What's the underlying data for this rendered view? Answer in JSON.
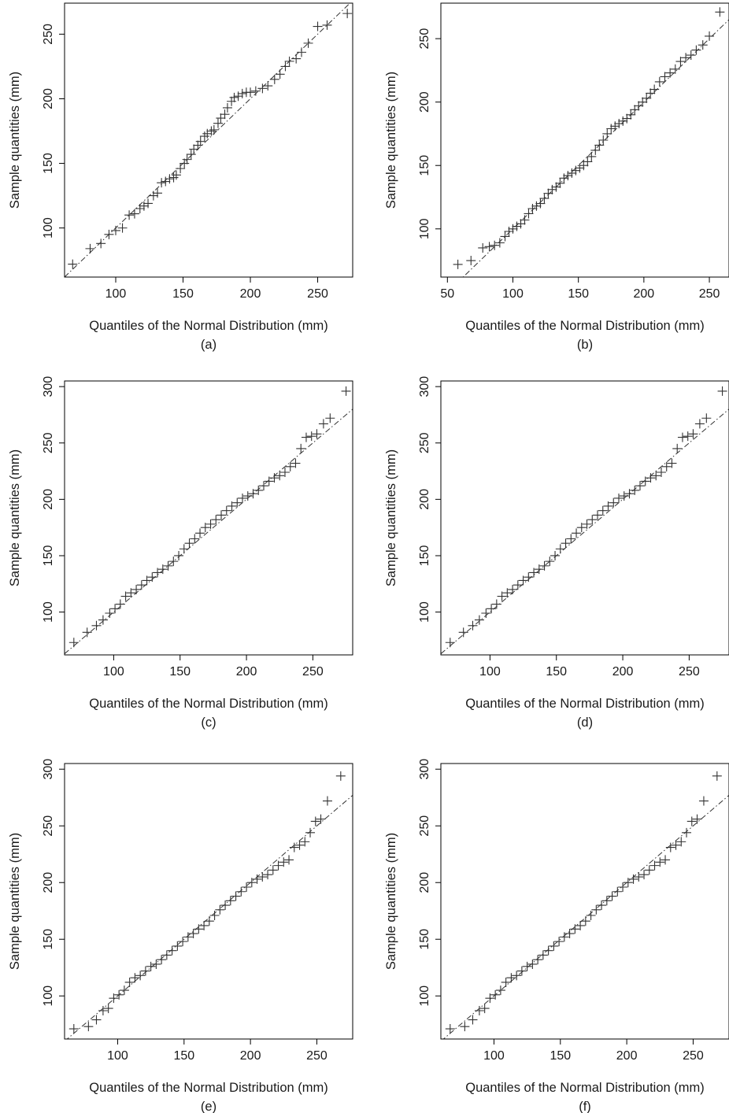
{
  "figure": {
    "xlabel": "Quantiles of the Normal Distribution (mm)",
    "ylabel": "Sample quantities (mm)"
  },
  "chart_data": [
    {
      "type": "scatter",
      "label": "(a)",
      "xlabel": "Quantiles of the Normal Distribution (mm)",
      "ylabel": "Sample quantities (mm)",
      "xlim": [
        62,
        276
      ],
      "ylim": [
        62,
        274
      ],
      "xticks": [
        100,
        150,
        200,
        250
      ],
      "yticks": [
        100,
        150,
        200,
        250
      ],
      "reference_line": [
        [
          62,
          62
        ],
        [
          276,
          276
        ]
      ],
      "x": [
        68,
        81,
        89,
        95,
        100,
        105,
        110,
        114,
        118,
        121,
        124,
        128,
        131,
        134,
        137,
        140,
        143,
        145,
        148,
        151,
        153,
        156,
        158,
        161,
        163,
        166,
        168,
        171,
        173,
        176,
        178,
        181,
        183,
        186,
        188,
        191,
        194,
        197,
        200,
        204,
        209,
        213,
        218,
        222,
        226,
        229,
        234,
        238,
        243,
        250,
        257,
        272
      ],
      "y": [
        72,
        84,
        88,
        95,
        98,
        100,
        110,
        111,
        115,
        117,
        119,
        125,
        127,
        135,
        136,
        138,
        139,
        141,
        146,
        150,
        153,
        157,
        161,
        164,
        167,
        171,
        173,
        175,
        176,
        181,
        185,
        188,
        193,
        198,
        201,
        202,
        204,
        205,
        205,
        206,
        208,
        210,
        215,
        219,
        225,
        229,
        231,
        236,
        243,
        256,
        257,
        266
      ]
    },
    {
      "type": "scatter",
      "label": "(b)",
      "xlabel": "Quantiles of the Normal Distribution (mm)",
      "ylabel": "Sample quantities (mm)",
      "xlim": [
        45,
        265
      ],
      "ylim": [
        62,
        278
      ],
      "xticks": [
        50,
        100,
        150,
        200,
        250
      ],
      "yticks": [
        100,
        150,
        200,
        250
      ],
      "reference_line": [
        [
          45,
          45
        ],
        [
          265,
          265
        ]
      ],
      "x": [
        58,
        68,
        77,
        82,
        86,
        90,
        94,
        97,
        100,
        103,
        106,
        109,
        112,
        115,
        118,
        121,
        124,
        127,
        130,
        133,
        136,
        139,
        142,
        145,
        148,
        151,
        154,
        157,
        160,
        163,
        166,
        169,
        172,
        175,
        178,
        181,
        184,
        187,
        190,
        193,
        196,
        199,
        202,
        205,
        208,
        212,
        216,
        220,
        224,
        228,
        232,
        236,
        240,
        245,
        250,
        258
      ],
      "y": [
        72,
        75,
        85,
        86,
        87,
        89,
        94,
        98,
        100,
        102,
        104,
        107,
        112,
        116,
        118,
        120,
        124,
        128,
        131,
        133,
        136,
        140,
        142,
        144,
        146,
        148,
        150,
        153,
        157,
        162,
        166,
        170,
        175,
        179,
        181,
        183,
        185,
        187,
        190,
        194,
        197,
        200,
        203,
        207,
        210,
        216,
        220,
        223,
        226,
        232,
        235,
        237,
        241,
        245,
        252,
        271
      ]
    },
    {
      "type": "scatter",
      "label": "(c)",
      "xlabel": "Quantiles of the Normal Distribution (mm)",
      "ylabel": "Sample quantities (mm)",
      "xlim": [
        63,
        280
      ],
      "ylim": [
        62,
        305
      ],
      "xticks": [
        100,
        150,
        200,
        250
      ],
      "yticks": [
        100,
        150,
        200,
        250,
        300
      ],
      "reference_line": [
        [
          63,
          63
        ],
        [
          280,
          280
        ]
      ],
      "x": [
        70,
        80,
        87,
        92,
        97,
        101,
        105,
        109,
        113,
        117,
        121,
        125,
        129,
        133,
        137,
        141,
        145,
        149,
        153,
        157,
        161,
        165,
        169,
        173,
        177,
        181,
        185,
        189,
        193,
        197,
        201,
        205,
        209,
        213,
        217,
        221,
        225,
        229,
        233,
        237,
        241,
        245,
        249,
        253,
        258,
        263,
        275
      ],
      "y": [
        73,
        82,
        88,
        93,
        99,
        103,
        107,
        114,
        117,
        120,
        124,
        128,
        131,
        135,
        138,
        141,
        145,
        150,
        156,
        161,
        165,
        170,
        175,
        178,
        182,
        186,
        190,
        194,
        197,
        201,
        203,
        205,
        208,
        212,
        216,
        219,
        221,
        224,
        229,
        232,
        245,
        255,
        256,
        258,
        267,
        272,
        296
      ]
    },
    {
      "type": "scatter",
      "label": "(d)",
      "xlabel": "Quantiles of the Normal Distribution (mm)",
      "ylabel": "Sample quantities (mm)",
      "xlim": [
        63,
        280
      ],
      "ylim": [
        62,
        305
      ],
      "xticks": [
        100,
        150,
        200,
        250
      ],
      "yticks": [
        100,
        150,
        200,
        250,
        300
      ],
      "reference_line": [
        [
          63,
          63
        ],
        [
          280,
          280
        ]
      ],
      "x": [
        70,
        80,
        87,
        92,
        97,
        101,
        105,
        109,
        113,
        117,
        121,
        125,
        129,
        133,
        137,
        141,
        145,
        149,
        153,
        157,
        161,
        165,
        169,
        173,
        177,
        181,
        185,
        189,
        193,
        197,
        201,
        205,
        209,
        213,
        217,
        221,
        225,
        229,
        233,
        237,
        241,
        245,
        249,
        253,
        258,
        263,
        275
      ],
      "y": [
        73,
        82,
        88,
        93,
        99,
        103,
        107,
        114,
        117,
        120,
        124,
        128,
        131,
        135,
        138,
        141,
        145,
        150,
        156,
        161,
        165,
        170,
        175,
        178,
        182,
        186,
        190,
        194,
        197,
        201,
        203,
        205,
        208,
        212,
        216,
        219,
        221,
        224,
        229,
        232,
        245,
        255,
        256,
        258,
        267,
        272,
        296
      ]
    },
    {
      "type": "scatter",
      "label": "(e)",
      "xlabel": "Quantiles of the Normal Distribution (mm)",
      "ylabel": "Sample quantities (mm)",
      "xlim": [
        60,
        277
      ],
      "ylim": [
        62,
        305
      ],
      "xticks": [
        100,
        150,
        200,
        250
      ],
      "yticks": [
        100,
        150,
        200,
        250,
        300
      ],
      "reference_line": [
        [
          60,
          60
        ],
        [
          277,
          277
        ]
      ],
      "x": [
        67,
        78,
        84,
        89,
        93,
        97,
        101,
        105,
        109,
        113,
        117,
        121,
        125,
        129,
        133,
        137,
        141,
        145,
        149,
        153,
        157,
        161,
        165,
        169,
        173,
        177,
        181,
        185,
        189,
        193,
        197,
        201,
        205,
        209,
        213,
        217,
        221,
        225,
        229,
        233,
        237,
        241,
        245,
        249,
        253,
        258,
        268
      ],
      "y": [
        71,
        73,
        79,
        87,
        89,
        98,
        101,
        105,
        112,
        116,
        118,
        122,
        126,
        128,
        132,
        136,
        140,
        144,
        148,
        152,
        155,
        159,
        162,
        166,
        171,
        176,
        180,
        184,
        188,
        192,
        196,
        200,
        203,
        205,
        207,
        211,
        215,
        218,
        220,
        231,
        233,
        236,
        244,
        254,
        256,
        272,
        294
      ]
    },
    {
      "type": "scatter",
      "label": "(f)",
      "xlabel": "Quantiles of the Normal Distribution (mm)",
      "ylabel": "Sample quantities (mm)",
      "xlim": [
        60,
        277
      ],
      "ylim": [
        62,
        305
      ],
      "xticks": [
        100,
        150,
        200,
        250
      ],
      "yticks": [
        100,
        150,
        200,
        250,
        300
      ],
      "reference_line": [
        [
          60,
          60
        ],
        [
          277,
          277
        ]
      ],
      "x": [
        67,
        78,
        84,
        89,
        93,
        97,
        101,
        105,
        109,
        113,
        117,
        121,
        125,
        129,
        133,
        137,
        141,
        145,
        149,
        153,
        157,
        161,
        165,
        169,
        173,
        177,
        181,
        185,
        189,
        193,
        197,
        201,
        205,
        209,
        213,
        217,
        221,
        225,
        229,
        233,
        237,
        241,
        245,
        249,
        253,
        258,
        268
      ],
      "y": [
        71,
        73,
        79,
        87,
        89,
        98,
        101,
        105,
        112,
        116,
        118,
        122,
        126,
        128,
        132,
        136,
        140,
        144,
        148,
        152,
        155,
        159,
        162,
        166,
        171,
        176,
        180,
        184,
        188,
        192,
        196,
        200,
        203,
        205,
        207,
        211,
        215,
        218,
        220,
        231,
        233,
        236,
        244,
        254,
        256,
        272,
        294
      ]
    }
  ]
}
